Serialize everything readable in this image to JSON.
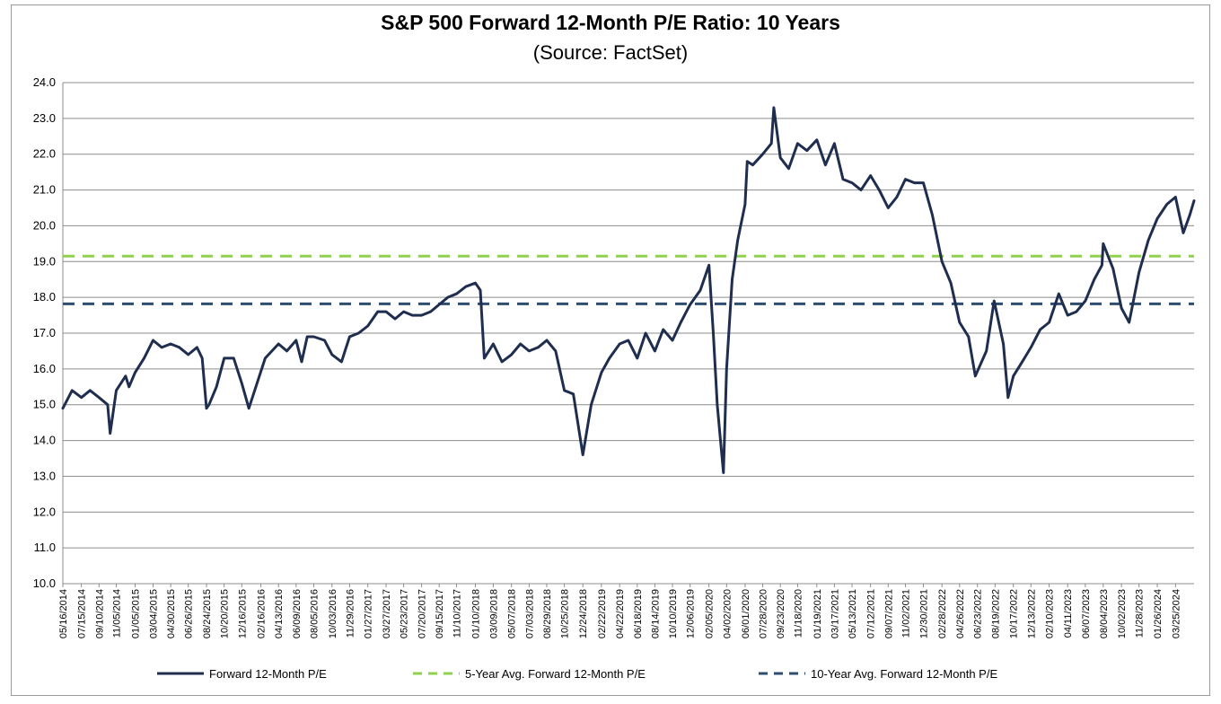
{
  "chart_data": {
    "type": "line",
    "title": "S&P 500 Forward 12-Month P/E Ratio: 10 Years",
    "subtitle": "(Source: FactSet)",
    "ylim": [
      10.0,
      24.0
    ],
    "yticks": [
      "10.0",
      "11.0",
      "12.0",
      "13.0",
      "14.0",
      "15.0",
      "16.0",
      "17.0",
      "18.0",
      "19.0",
      "20.0",
      "21.0",
      "22.0",
      "23.0",
      "24.0"
    ],
    "x_ticks": [
      "05/16/2014",
      "07/15/2014",
      "09/10/2014",
      "11/05/2014",
      "01/05/2015",
      "03/04/2015",
      "04/30/2015",
      "06/26/2015",
      "08/24/2015",
      "10/20/2015",
      "12/16/2015",
      "02/16/2016",
      "04/13/2016",
      "06/09/2016",
      "08/05/2016",
      "10/03/2016",
      "11/29/2016",
      "01/27/2017",
      "03/27/2017",
      "05/23/2017",
      "07/20/2017",
      "09/15/2017",
      "11/10/2017",
      "01/10/2018",
      "03/09/2018",
      "05/07/2018",
      "07/03/2018",
      "08/29/2018",
      "10/25/2018",
      "12/24/2018",
      "02/22/2019",
      "04/22/2019",
      "06/18/2019",
      "08/14/2019",
      "10/10/2019",
      "12/06/2019",
      "02/05/2020",
      "04/02/2020",
      "06/01/2020",
      "07/28/2020",
      "09/23/2020",
      "11/18/2020",
      "01/19/2021",
      "03/17/2021",
      "05/13/2021",
      "07/12/2021",
      "09/07/2021",
      "11/02/2021",
      "12/30/2021",
      "02/28/2022",
      "04/26/2022",
      "06/23/2022",
      "08/19/2022",
      "10/17/2022",
      "12/13/2022",
      "02/10/2023",
      "04/11/2023",
      "06/07/2023",
      "08/04/2023",
      "10/02/2023",
      "11/28/2023",
      "01/26/2024",
      "03/25/2024"
    ],
    "series": [
      {
        "name": "Forward 12-Month P/E",
        "color": "#1f2d4f",
        "style": "solid",
        "x": [
          "05/16/2014",
          "06/15/2014",
          "07/15/2014",
          "08/12/2014",
          "09/10/2014",
          "10/08/2014",
          "10/16/2014",
          "11/05/2014",
          "12/05/2014",
          "12/16/2014",
          "01/05/2015",
          "02/03/2015",
          "03/04/2015",
          "04/01/2015",
          "04/30/2015",
          "05/28/2015",
          "06/26/2015",
          "07/24/2015",
          "08/10/2015",
          "08/24/2015",
          "09/01/2015",
          "09/25/2015",
          "10/20/2015",
          "11/20/2015",
          "12/16/2015",
          "01/08/2016",
          "02/11/2016",
          "03/01/2016",
          "04/13/2016",
          "05/10/2016",
          "06/09/2016",
          "06/27/2016",
          "07/15/2016",
          "08/05/2016",
          "09/09/2016",
          "10/03/2016",
          "11/03/2016",
          "11/29/2016",
          "12/28/2016",
          "01/27/2017",
          "02/28/2017",
          "03/27/2017",
          "04/25/2017",
          "05/23/2017",
          "06/20/2017",
          "07/20/2017",
          "08/18/2017",
          "09/15/2017",
          "10/13/2017",
          "11/10/2017",
          "12/10/2017",
          "01/10/2018",
          "01/26/2018",
          "02/08/2018",
          "03/09/2018",
          "04/06/2018",
          "05/07/2018",
          "06/05/2018",
          "07/03/2018",
          "08/01/2018",
          "08/29/2018",
          "09/27/2018",
          "10/25/2018",
          "11/23/2018",
          "12/24/2018",
          "01/20/2019",
          "02/22/2019",
          "03/20/2019",
          "04/22/2019",
          "05/20/2019",
          "06/18/2019",
          "07/15/2019",
          "08/14/2019",
          "09/10/2019",
          "10/10/2019",
          "11/06/2019",
          "12/06/2019",
          "01/08/2020",
          "02/05/2020",
          "02/19/2020",
          "03/03/2020",
          "03/23/2020",
          "04/02/2020",
          "04/20/2020",
          "05/08/2020",
          "06/01/2020",
          "06/08/2020",
          "06/26/2020",
          "07/28/2020",
          "08/25/2020",
          "09/02/2020",
          "09/23/2020",
          "10/20/2020",
          "11/18/2020",
          "12/18/2020",
          "01/19/2021",
          "02/16/2021",
          "03/17/2021",
          "04/14/2021",
          "05/13/2021",
          "06/11/2021",
          "07/12/2021",
          "08/09/2021",
          "09/07/2021",
          "10/05/2021",
          "11/02/2021",
          "12/01/2021",
          "12/30/2021",
          "01/28/2022",
          "02/28/2022",
          "03/29/2022",
          "04/26/2022",
          "05/25/2022",
          "06/16/2022",
          "07/22/2022",
          "08/16/2022",
          "09/15/2022",
          "09/30/2022",
          "10/17/2022",
          "11/15/2022",
          "12/13/2022",
          "01/12/2023",
          "02/10/2023",
          "03/13/2023",
          "04/11/2023",
          "05/09/2023",
          "06/07/2023",
          "07/06/2023",
          "07/31/2023",
          "08/04/2023",
          "09/05/2023",
          "10/02/2023",
          "10/27/2023",
          "11/28/2023",
          "12/28/2023",
          "01/26/2024",
          "02/26/2024",
          "03/25/2024",
          "04/19/2024",
          "05/10/2024",
          "05/24/2024"
        ],
        "values": [
          14.9,
          15.4,
          15.2,
          15.4,
          15.2,
          15.0,
          14.2,
          15.4,
          15.8,
          15.5,
          15.9,
          16.3,
          16.8,
          16.6,
          16.7,
          16.6,
          16.4,
          16.6,
          16.3,
          14.9,
          15.0,
          15.5,
          16.3,
          16.3,
          15.6,
          14.9,
          15.8,
          16.3,
          16.7,
          16.5,
          16.8,
          16.2,
          16.9,
          16.9,
          16.8,
          16.4,
          16.2,
          16.9,
          17.0,
          17.2,
          17.6,
          17.6,
          17.4,
          17.6,
          17.5,
          17.5,
          17.6,
          17.8,
          18.0,
          18.1,
          18.3,
          18.4,
          18.2,
          16.3,
          16.7,
          16.2,
          16.4,
          16.7,
          16.5,
          16.6,
          16.8,
          16.5,
          15.4,
          15.3,
          13.6,
          15.0,
          15.9,
          16.3,
          16.7,
          16.8,
          16.3,
          17.0,
          16.5,
          17.1,
          16.8,
          17.3,
          17.8,
          18.2,
          18.9,
          17.0,
          15.0,
          13.1,
          16.0,
          18.5,
          19.6,
          20.6,
          21.8,
          21.7,
          22.0,
          22.3,
          23.3,
          21.9,
          21.6,
          22.3,
          22.1,
          22.4,
          21.7,
          22.3,
          21.3,
          21.2,
          21.0,
          21.4,
          21.0,
          20.5,
          20.8,
          21.3,
          21.2,
          21.2,
          20.3,
          19.0,
          18.4,
          17.3,
          16.9,
          15.8,
          16.5,
          17.9,
          16.7,
          15.2,
          15.8,
          16.2,
          16.6,
          17.1,
          17.3,
          18.1,
          17.5,
          17.6,
          17.9,
          18.5,
          18.9,
          19.5,
          18.8,
          17.7,
          17.3,
          18.7,
          19.6,
          20.2,
          20.6,
          20.8,
          19.8,
          20.3,
          20.7
        ]
      },
      {
        "name": "5-Year Avg. Forward 12-Month P/E",
        "color": "#92d050",
        "style": "dashed",
        "value": 19.15
      },
      {
        "name": "10-Year Avg. Forward 12-Month P/E",
        "color": "#2e4d6f",
        "style": "dashed",
        "value": 17.82
      }
    ],
    "grid": "horizontal",
    "legend_position": "bottom"
  }
}
